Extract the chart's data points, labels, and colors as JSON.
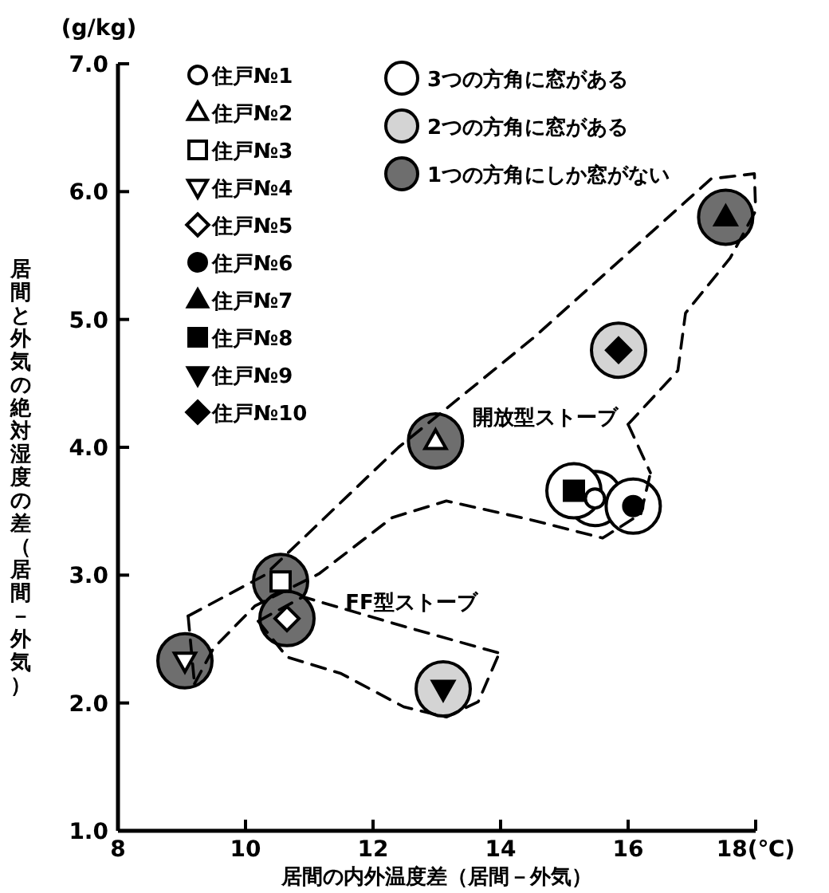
{
  "chart_data": {
    "type": "scatter",
    "xlabel": "居間の内外温度差（居間－外気）",
    "ylabel": "居間と外気の絶対湿度の差（居間－外気）",
    "xlim": [
      8,
      18
    ],
    "ylim": [
      1,
      7
    ],
    "xticks": [
      8,
      10,
      12,
      14,
      16,
      {
        "value": 18,
        "label": "18(℃)"
      }
    ],
    "yticks": [
      {
        "value": 1,
        "label": "1.0"
      },
      {
        "value": 2,
        "label": "2.0"
      },
      {
        "value": 3,
        "label": "3.0"
      },
      {
        "value": 4,
        "label": "4.0"
      },
      {
        "value": 5,
        "label": "5.0"
      },
      {
        "value": 6,
        "label": "6.0"
      },
      {
        "value": 7,
        "label": "7.0"
      }
    ],
    "grid": false,
    "legend": "top left",
    "annotations": [
      "(g/kg)",
      "開放型ストーブ",
      "FF型ストーブ"
    ],
    "series": [
      {
        "type": "bubble",
        "name": "3つの方角に窓がある",
        "color": "#ffffff",
        "x": [
          15.48,
          15.15,
          16.08
        ],
        "values": [
          3.6,
          3.66,
          3.54
        ],
        "sizes": [
          1,
          1,
          1
        ]
      },
      {
        "type": "bubble",
        "name": "2つの方角に窓がある",
        "color": "#d4d4d4",
        "x": [
          13.1,
          15.85
        ],
        "values": [
          2.11,
          4.76
        ],
        "sizes": [
          1,
          1
        ]
      },
      {
        "type": "bubble",
        "name": "1つの方角にしか窓がない",
        "color": "#6e6e6e",
        "x": [
          9.05,
          10.55,
          10.65,
          12.98,
          17.53
        ],
        "values": [
          2.33,
          2.95,
          2.66,
          4.05,
          5.8
        ],
        "sizes": [
          1,
          1,
          1,
          1,
          1
        ]
      },
      {
        "type": "line",
        "line_style": "dashed",
        "color": "#000000",
        "x": [
          9.1,
          10.3,
          12.4,
          14.5,
          17.3,
          17.98,
          18.0
        ],
        "values": [
          2.68,
          3.0,
          4.0,
          4.85,
          6.1,
          6.14,
          5.85
        ]
      },
      {
        "type": "line",
        "line_style": "dashed",
        "color": "#000000",
        "x": [
          16.0,
          16.78,
          16.9,
          17.6,
          18.0
        ],
        "values": [
          4.18,
          4.6,
          5.05,
          5.48,
          5.85
        ]
      },
      {
        "type": "line",
        "line_style": "dashed",
        "color": "#000000",
        "x": [
          16.0,
          16.35
        ],
        "values": [
          4.18,
          3.8
        ]
      },
      {
        "type": "line",
        "line_style": "dashed",
        "color": "#000000",
        "x": [
          9.2,
          9.5,
          10.15,
          11.15,
          12.3,
          13.15,
          14.5,
          15.6,
          16.2,
          16.35
        ],
        "values": [
          2.15,
          2.43,
          2.76,
          3.01,
          3.45,
          3.58,
          3.43,
          3.29,
          3.48,
          3.8
        ]
      },
      {
        "type": "line",
        "line_style": "dashed",
        "color": "#000000",
        "x": [
          9.1,
          9.2
        ],
        "values": [
          2.68,
          2.15
        ]
      },
      {
        "type": "line",
        "line_style": "dashed",
        "color": "#000000",
        "x": [
          10.2,
          10.9,
          12.48,
          13.98
        ],
        "values": [
          2.64,
          2.83,
          2.6,
          2.39
        ]
      },
      {
        "type": "line",
        "line_style": "dashed",
        "color": "#000000",
        "x": [
          10.2,
          10.65,
          11.5,
          12.48,
          13.15,
          13.65,
          13.98
        ],
        "values": [
          2.64,
          2.36,
          2.23,
          1.97,
          1.89,
          2.01,
          2.39
        ]
      },
      {
        "name": "住戸№1",
        "marker": "circle",
        "color": "#ffffff",
        "x": [
          15.48
        ],
        "values": [
          3.6
        ]
      },
      {
        "name": "住戸№2",
        "marker": "triangle",
        "color": "#ffffff",
        "x": [
          12.98
        ],
        "values": [
          4.05
        ]
      },
      {
        "name": "住戸№3",
        "marker": "square",
        "color": "#ffffff",
        "x": [
          10.55
        ],
        "values": [
          2.95
        ]
      },
      {
        "name": "住戸№4",
        "marker": "triangle-down",
        "color": "#ffffff",
        "x": [
          9.05
        ],
        "values": [
          2.33
        ]
      },
      {
        "name": "住戸№5",
        "marker": "diamond",
        "color": "#ffffff",
        "x": [
          10.65
        ],
        "values": [
          2.66
        ]
      },
      {
        "name": "住戸№6",
        "marker": "circle",
        "color": "#000000",
        "x": [
          16.08
        ],
        "values": [
          3.54
        ]
      },
      {
        "name": "住戸№7",
        "marker": "triangle",
        "color": "#000000",
        "x": [
          17.53
        ],
        "values": [
          5.8
        ]
      },
      {
        "name": "住戸№8",
        "marker": "square",
        "color": "#000000",
        "x": [
          15.15
        ],
        "values": [
          3.66
        ]
      },
      {
        "name": "住戸№9",
        "marker": "triangle-down",
        "color": "#000000",
        "x": [
          13.1
        ],
        "values": [
          2.11
        ]
      },
      {
        "name": "住戸№10",
        "marker": "diamond",
        "color": "#000000",
        "x": [
          15.85
        ],
        "values": [
          4.76
        ]
      }
    ]
  }
}
